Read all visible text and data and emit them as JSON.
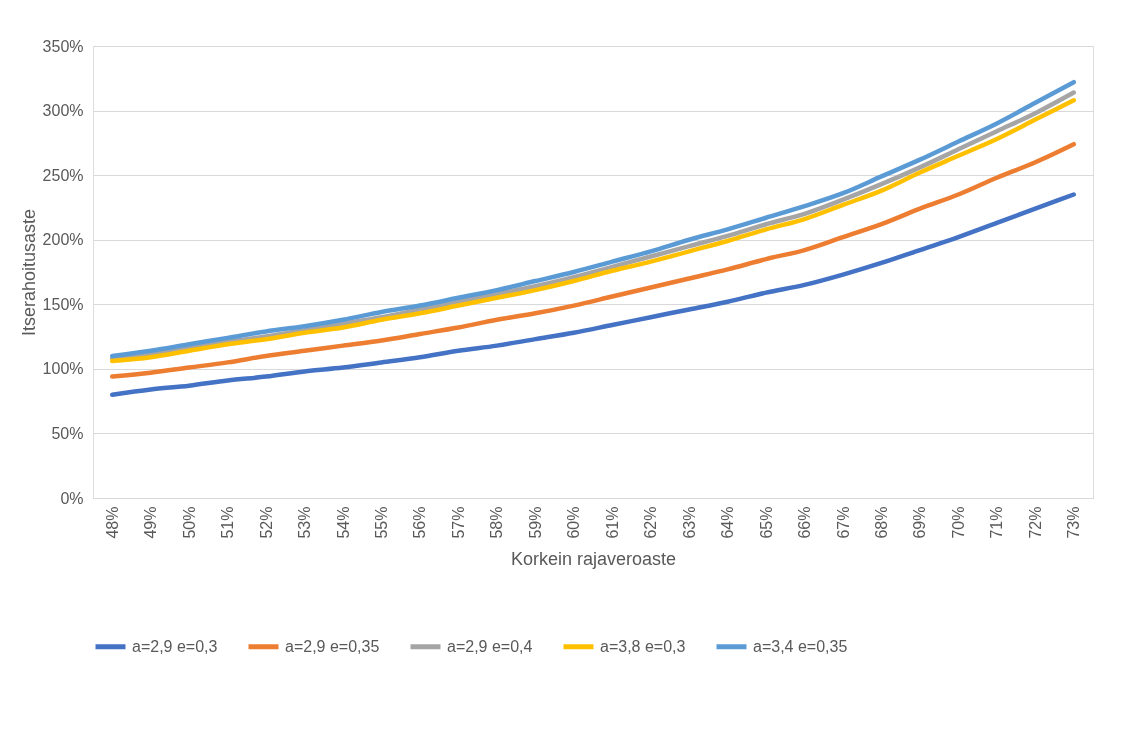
{
  "chart_data": {
    "type": "line",
    "xlabel": "Korkein rajaveroaste",
    "ylabel": "Itserahoitusaste",
    "categories": [
      "48%",
      "49%",
      "50%",
      "51%",
      "52%",
      "53%",
      "54%",
      "55%",
      "56%",
      "57%",
      "58%",
      "59%",
      "60%",
      "61%",
      "62%",
      "63%",
      "64%",
      "65%",
      "66%",
      "67%",
      "68%",
      "69%",
      "70%",
      "71%",
      "72%",
      "73%"
    ],
    "series": [
      {
        "name": "a=2,9 e=0,3",
        "color": "#4472c4",
        "values": [
          80,
          84,
          87,
          91,
          94,
          98,
          101,
          105,
          109,
          114,
          118,
          123,
          128,
          134,
          140,
          146,
          152,
          159,
          165,
          173,
          182,
          192,
          202,
          213,
          224,
          235
        ]
      },
      {
        "name": "a=2,9 e=0,35",
        "color": "#ed7d31",
        "values": [
          94,
          97,
          101,
          105,
          110,
          114,
          118,
          122,
          127,
          132,
          138,
          143,
          149,
          156,
          163,
          170,
          177,
          185,
          192,
          202,
          212,
          224,
          235,
          248,
          260,
          274
        ]
      },
      {
        "name": "a=2,9 e=0,4",
        "color": "#a5a5a5",
        "values": [
          108,
          111,
          116,
          121,
          125,
          130,
          135,
          140,
          146,
          152,
          158,
          164,
          171,
          179,
          187,
          195,
          203,
          212,
          220,
          231,
          243,
          256,
          270,
          284,
          298,
          314
        ]
      },
      {
        "name": "a=3,8 e=0,3",
        "color": "#ffc000",
        "values": [
          106,
          109,
          114,
          119,
          123,
          128,
          132,
          138,
          143,
          149,
          155,
          161,
          168,
          176,
          183,
          191,
          199,
          208,
          216,
          227,
          238,
          252,
          265,
          278,
          293,
          308
        ]
      },
      {
        "name": "a=3,4 e=0,35",
        "color": "#5b9bd5",
        "values": [
          110,
          114,
          119,
          124,
          129,
          133,
          138,
          144,
          149,
          155,
          161,
          168,
          175,
          183,
          191,
          200,
          208,
          217,
          226,
          236,
          249,
          262,
          276,
          290,
          306,
          322
        ]
      }
    ],
    "ylim": [
      0,
      350
    ],
    "yticks": [
      {
        "value": 0,
        "label": "0%"
      },
      {
        "value": 50,
        "label": "50%"
      },
      {
        "value": 100,
        "label": "100%"
      },
      {
        "value": 150,
        "label": "150%"
      },
      {
        "value": 200,
        "label": "200%"
      },
      {
        "value": 250,
        "label": "250%"
      },
      {
        "value": 300,
        "label": "300%"
      },
      {
        "value": 350,
        "label": "350%"
      }
    ],
    "grid": "y",
    "legend": "bottom",
    "marker": "none",
    "line_style": "solid"
  }
}
